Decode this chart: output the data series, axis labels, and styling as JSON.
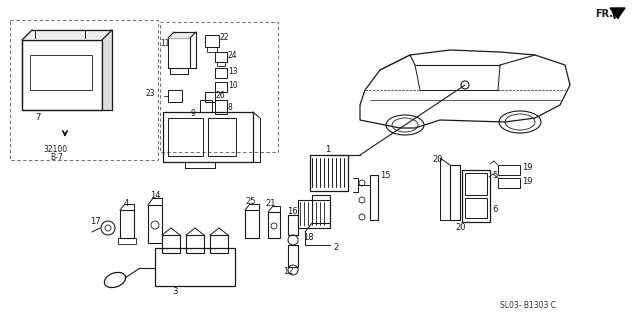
{
  "bg_color": "#ffffff",
  "line_color": "#1a1a1a",
  "diagram_code": "SL03- B1303 C",
  "fr_label": "FR.",
  "part_number": "32100\nB-7"
}
